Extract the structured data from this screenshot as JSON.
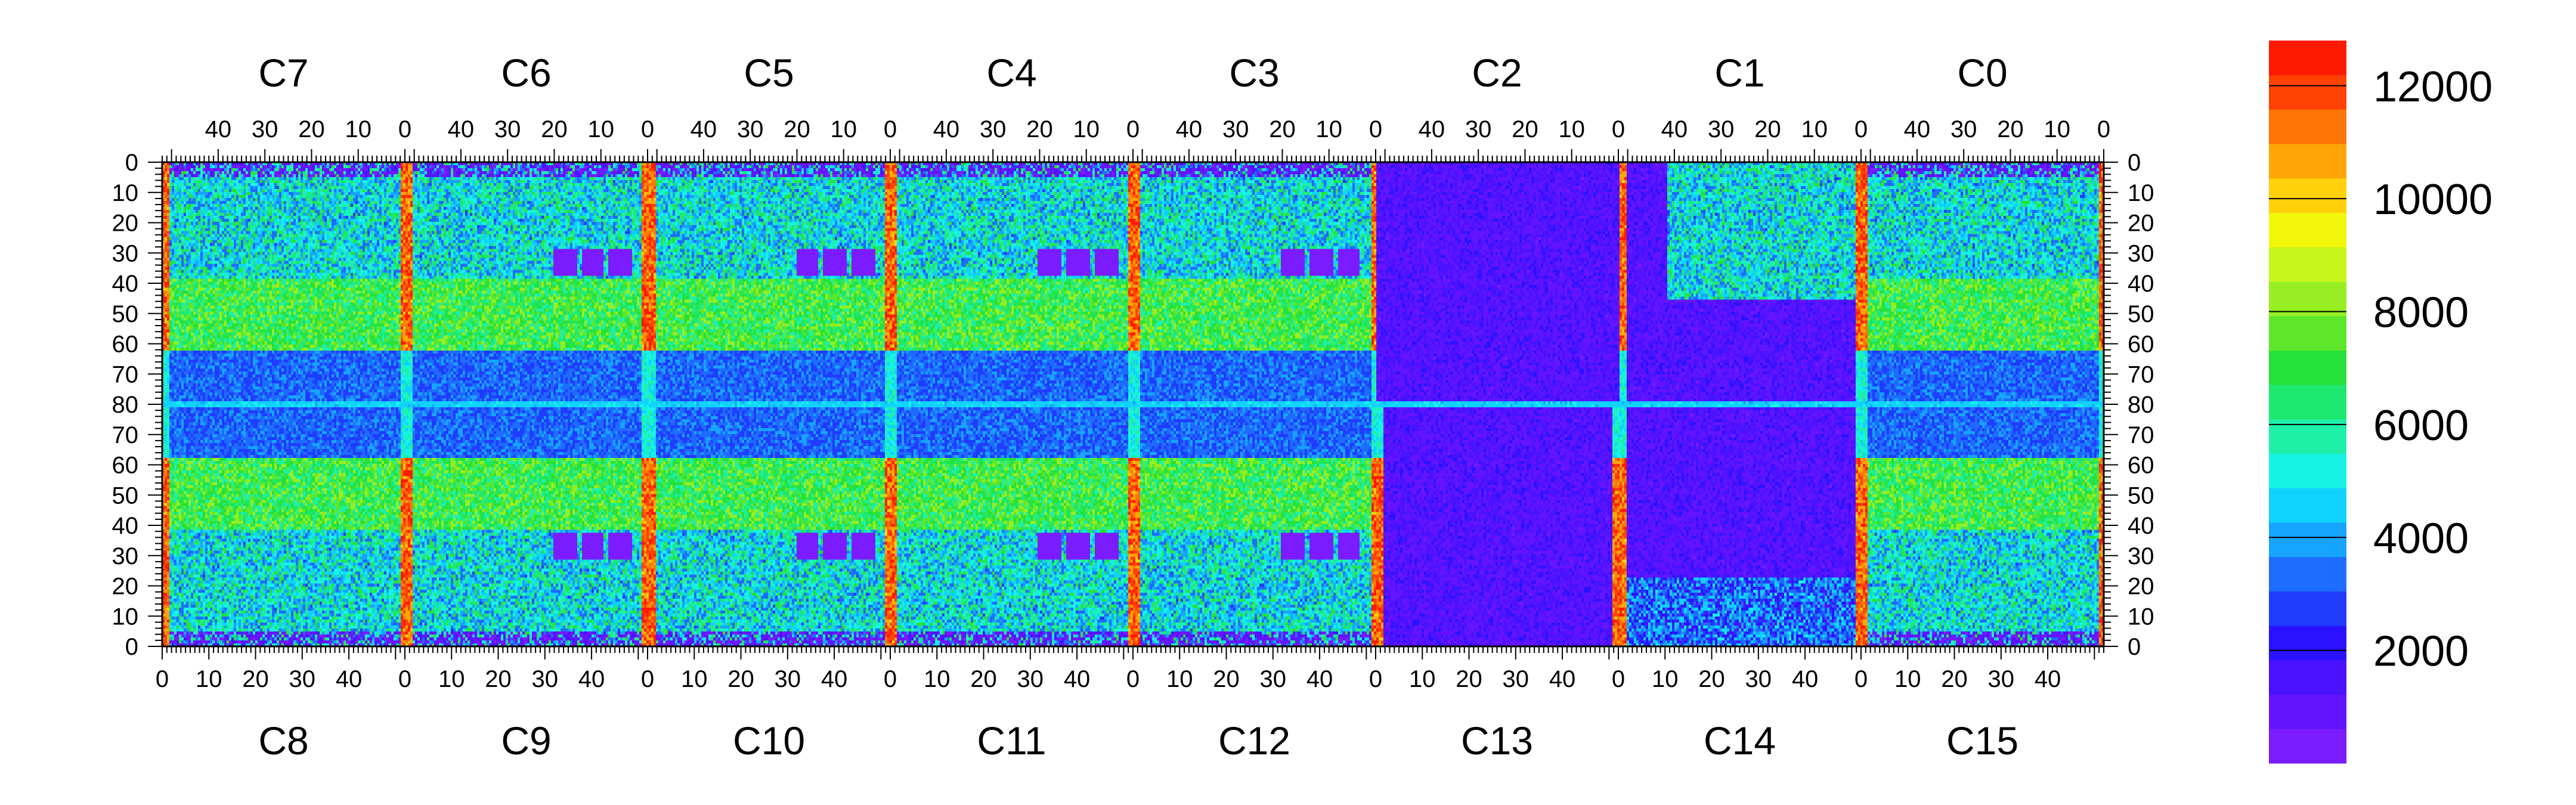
{
  "chart_data": {
    "type": "heatmap",
    "title": "",
    "xlabel": "",
    "ylabel": "",
    "top_chips": [
      "C7",
      "C6",
      "C5",
      "C4",
      "C3",
      "C2",
      "C1",
      "C0"
    ],
    "bottom_chips": [
      "C8",
      "C9",
      "C10",
      "C11",
      "C12",
      "C13",
      "C14",
      "C15"
    ],
    "top_axis_tick_labels": [
      "40",
      "30",
      "20",
      "10",
      "0"
    ],
    "bottom_axis_tick_labels": [
      "0",
      "10",
      "20",
      "30",
      "40"
    ],
    "y_tick_labels": [
      "0",
      "10",
      "20",
      "30",
      "40",
      "50",
      "60",
      "70",
      "80",
      "70",
      "60",
      "50",
      "40",
      "30",
      "20",
      "10",
      "0"
    ],
    "chip_columns": 52,
    "rows_per_half": 80,
    "zlim": [
      0,
      12800
    ],
    "colorbar_tick_labels": [
      "2000",
      "4000",
      "6000",
      "8000",
      "10000",
      "12000"
    ],
    "colorbar_tick_values": [
      2000,
      4000,
      6000,
      8000,
      10000,
      12000
    ],
    "typical_counts": {
      "cold_columns_column_0": 11500,
      "active_matrix": 5000,
      "bright_band_rows_40_60": 7000,
      "central_rows_60_80": 2500,
      "masked_pads": 300,
      "chips_C13_C14_C1_C2": 600
    }
  }
}
